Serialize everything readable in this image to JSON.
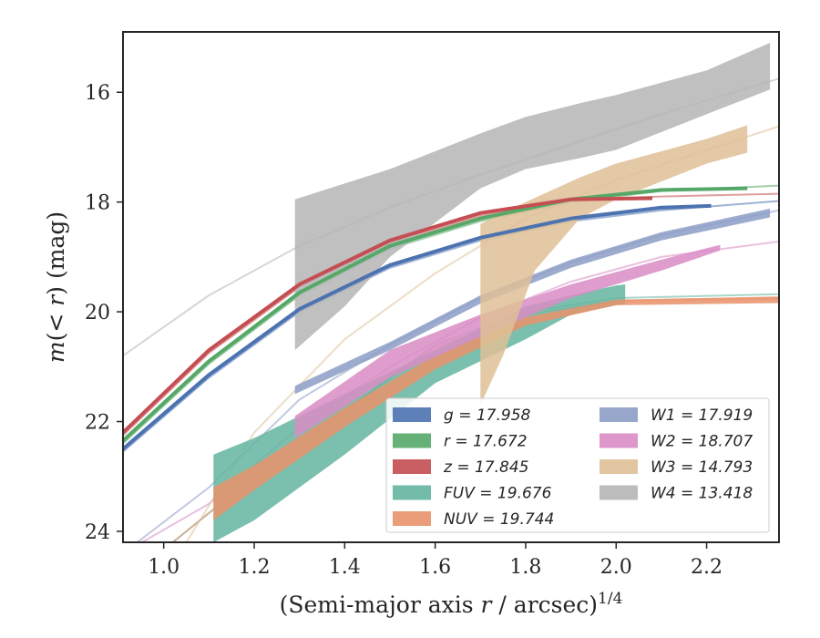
{
  "chart_data": {
    "type": "line",
    "xlabel": "(Semi-major axis r / arcsec)",
    "xlabel_exponent": "1/4",
    "ylabel": "m(< r) (mag)",
    "xlim": [
      0.91,
      2.36
    ],
    "ylim": [
      24.2,
      14.9
    ],
    "y_inverted": true,
    "grid": false,
    "legend_position": "lower-right",
    "x_ticks": [
      "1.0",
      "1.2",
      "1.4",
      "1.6",
      "1.8",
      "2.0",
      "2.2"
    ],
    "y_ticks": [
      "16",
      "18",
      "20",
      "22",
      "24"
    ],
    "series": [
      {
        "name": "g = 17.958",
        "band": "g",
        "value": "17.958",
        "color": "#4c72b0",
        "model": [
          [
            0.91,
            22.55
          ],
          [
            1.1,
            21.2
          ],
          [
            1.3,
            20.0
          ],
          [
            1.5,
            19.2
          ],
          [
            1.7,
            18.7
          ],
          [
            1.9,
            18.35
          ],
          [
            2.1,
            18.15
          ],
          [
            2.36,
            17.98
          ]
        ],
        "data": [
          [
            0.91,
            22.5
          ],
          [
            1.1,
            21.15
          ],
          [
            1.3,
            19.95
          ],
          [
            1.5,
            19.15
          ],
          [
            1.7,
            18.65
          ],
          [
            1.9,
            18.3
          ],
          [
            2.1,
            18.1
          ],
          [
            2.21,
            18.07
          ]
        ],
        "data_width": 4
      },
      {
        "name": "r = 17.672",
        "band": "r",
        "value": "17.672",
        "color": "#55a868",
        "model": [
          [
            0.91,
            22.4
          ],
          [
            1.1,
            20.95
          ],
          [
            1.3,
            19.7
          ],
          [
            1.5,
            18.85
          ],
          [
            1.7,
            18.35
          ],
          [
            1.9,
            18.0
          ],
          [
            2.1,
            17.8
          ],
          [
            2.36,
            17.7
          ]
        ],
        "data": [
          [
            0.91,
            22.35
          ],
          [
            1.1,
            20.9
          ],
          [
            1.3,
            19.65
          ],
          [
            1.5,
            18.8
          ],
          [
            1.7,
            18.3
          ],
          [
            1.9,
            17.95
          ],
          [
            2.1,
            17.78
          ],
          [
            2.29,
            17.75
          ]
        ],
        "data_width": 4
      },
      {
        "name": "z = 17.845",
        "band": "z",
        "value": "17.845",
        "color": "#c44e52",
        "model": [
          [
            0.91,
            22.25
          ],
          [
            1.1,
            20.75
          ],
          [
            1.3,
            19.55
          ],
          [
            1.5,
            18.75
          ],
          [
            1.7,
            18.25
          ],
          [
            1.9,
            17.95
          ],
          [
            2.1,
            17.9
          ],
          [
            2.36,
            17.85
          ]
        ],
        "data": [
          [
            0.91,
            22.2
          ],
          [
            1.1,
            20.7
          ],
          [
            1.3,
            19.5
          ],
          [
            1.5,
            18.7
          ],
          [
            1.7,
            18.2
          ],
          [
            1.9,
            17.95
          ],
          [
            2.08,
            17.93
          ]
        ],
        "data_width": 4
      },
      {
        "name": "FUV = 19.676",
        "band": "FUV",
        "value": "19.676",
        "color": "#64b5a0",
        "model": [
          [
            1.02,
            24.2
          ],
          [
            1.2,
            23.0
          ],
          [
            1.4,
            21.8
          ],
          [
            1.6,
            20.6
          ],
          [
            1.8,
            20.0
          ],
          [
            2.0,
            19.75
          ],
          [
            2.36,
            19.68
          ]
        ],
        "upper": [
          [
            1.11,
            22.6
          ],
          [
            1.2,
            22.3
          ],
          [
            1.4,
            21.5
          ],
          [
            1.6,
            20.7
          ],
          [
            1.8,
            19.9
          ],
          [
            1.9,
            19.7
          ],
          [
            2.0,
            19.52
          ],
          [
            2.02,
            19.5
          ]
        ],
        "lower": [
          [
            1.11,
            24.2
          ],
          [
            1.2,
            23.8
          ],
          [
            1.4,
            22.6
          ],
          [
            1.6,
            21.3
          ],
          [
            1.8,
            20.5
          ],
          [
            1.9,
            20.05
          ],
          [
            2.0,
            19.88
          ],
          [
            2.02,
            19.85
          ]
        ]
      },
      {
        "name": "NUV = 19.744",
        "band": "NUV",
        "value": "19.744",
        "color": "#e9926a",
        "model": [
          [
            1.02,
            24.2
          ],
          [
            1.2,
            23.0
          ],
          [
            1.4,
            21.8
          ],
          [
            1.6,
            20.65
          ],
          [
            1.8,
            20.05
          ],
          [
            2.0,
            19.8
          ],
          [
            2.36,
            19.76
          ]
        ],
        "upper": [
          [
            1.11,
            23.2
          ],
          [
            1.2,
            22.8
          ],
          [
            1.4,
            21.75
          ],
          [
            1.6,
            20.8
          ],
          [
            1.8,
            20.1
          ],
          [
            2.0,
            19.78
          ],
          [
            2.36,
            19.72
          ]
        ],
        "lower": [
          [
            1.11,
            23.8
          ],
          [
            1.2,
            23.25
          ],
          [
            1.4,
            22.1
          ],
          [
            1.6,
            21.05
          ],
          [
            1.8,
            20.25
          ],
          [
            2.0,
            19.88
          ],
          [
            2.36,
            19.84
          ]
        ]
      },
      {
        "name": "W1 = 17.919",
        "band": "W1",
        "value": "17.919",
        "color": "#8c9dc6",
        "model": [
          [
            0.91,
            24.4
          ],
          [
            1.1,
            23.2
          ],
          [
            1.3,
            21.6
          ],
          [
            1.5,
            20.6
          ],
          [
            1.7,
            19.75
          ],
          [
            1.9,
            19.1
          ],
          [
            2.1,
            18.6
          ],
          [
            2.36,
            18.15
          ]
        ],
        "upper": [
          [
            1.29,
            21.35
          ],
          [
            1.5,
            20.55
          ],
          [
            1.7,
            19.7
          ],
          [
            1.9,
            19.05
          ],
          [
            2.1,
            18.55
          ],
          [
            2.34,
            18.12
          ]
        ],
        "lower": [
          [
            1.29,
            21.5
          ],
          [
            1.5,
            20.7
          ],
          [
            1.7,
            19.85
          ],
          [
            1.9,
            19.2
          ],
          [
            2.1,
            18.7
          ],
          [
            2.34,
            18.28
          ]
        ]
      },
      {
        "name": "W2 = 18.707",
        "band": "W2",
        "value": "18.707",
        "color": "#d98cc4",
        "model": [
          [
            0.91,
            24.4
          ],
          [
            1.1,
            23.5
          ],
          [
            1.3,
            22.1
          ],
          [
            1.5,
            21.0
          ],
          [
            1.7,
            20.1
          ],
          [
            1.9,
            19.45
          ],
          [
            2.1,
            19.0
          ],
          [
            2.36,
            18.72
          ]
        ],
        "upper": [
          [
            1.29,
            21.9
          ],
          [
            1.5,
            20.7
          ],
          [
            1.7,
            20.05
          ],
          [
            1.9,
            19.5
          ],
          [
            2.1,
            19.05
          ],
          [
            2.23,
            18.78
          ]
        ],
        "lower": [
          [
            1.29,
            22.3
          ],
          [
            1.5,
            21.2
          ],
          [
            1.7,
            20.45
          ],
          [
            1.9,
            19.75
          ],
          [
            2.1,
            19.25
          ],
          [
            2.23,
            18.88
          ]
        ]
      },
      {
        "name": "W3 = 14.793",
        "band": "W3",
        "value": "14.793",
        "color": "#dfc097",
        "model": [
          [
            1.05,
            24.2
          ],
          [
            1.2,
            22.2
          ],
          [
            1.4,
            20.5
          ],
          [
            1.6,
            19.3
          ],
          [
            1.8,
            18.3
          ],
          [
            2.0,
            17.6
          ],
          [
            2.2,
            17.05
          ],
          [
            2.36,
            16.62
          ]
        ],
        "upper": [
          [
            1.7,
            18.4
          ],
          [
            1.8,
            18.0
          ],
          [
            1.92,
            17.55
          ],
          [
            2.0,
            17.3
          ],
          [
            2.2,
            16.85
          ],
          [
            2.29,
            16.6
          ]
        ],
        "lower": [
          [
            1.7,
            21.7
          ],
          [
            1.75,
            20.8
          ],
          [
            1.82,
            19.25
          ],
          [
            1.92,
            18.3
          ],
          [
            2.0,
            17.95
          ],
          [
            2.2,
            17.3
          ],
          [
            2.29,
            17.1
          ]
        ]
      },
      {
        "name": "W4 = 13.418",
        "band": "W4",
        "value": "13.418",
        "color": "#b5b5b5",
        "model": [
          [
            0.91,
            20.8
          ],
          [
            1.1,
            19.7
          ],
          [
            1.3,
            18.8
          ],
          [
            1.5,
            18.1
          ],
          [
            1.7,
            17.5
          ],
          [
            1.9,
            16.95
          ],
          [
            2.1,
            16.4
          ],
          [
            2.36,
            15.75
          ]
        ],
        "upper": [
          [
            1.29,
            17.95
          ],
          [
            1.5,
            17.4
          ],
          [
            1.7,
            16.75
          ],
          [
            1.8,
            16.45
          ],
          [
            1.92,
            16.2
          ],
          [
            2.0,
            16.05
          ],
          [
            2.2,
            15.6
          ],
          [
            2.34,
            15.1
          ]
        ],
        "lower": [
          [
            1.29,
            20.7
          ],
          [
            1.4,
            19.9
          ],
          [
            1.5,
            19.0
          ],
          [
            1.7,
            17.75
          ],
          [
            1.8,
            17.4
          ],
          [
            1.92,
            17.2
          ],
          [
            2.0,
            17.05
          ],
          [
            2.2,
            16.4
          ],
          [
            2.34,
            15.95
          ]
        ]
      }
    ]
  }
}
